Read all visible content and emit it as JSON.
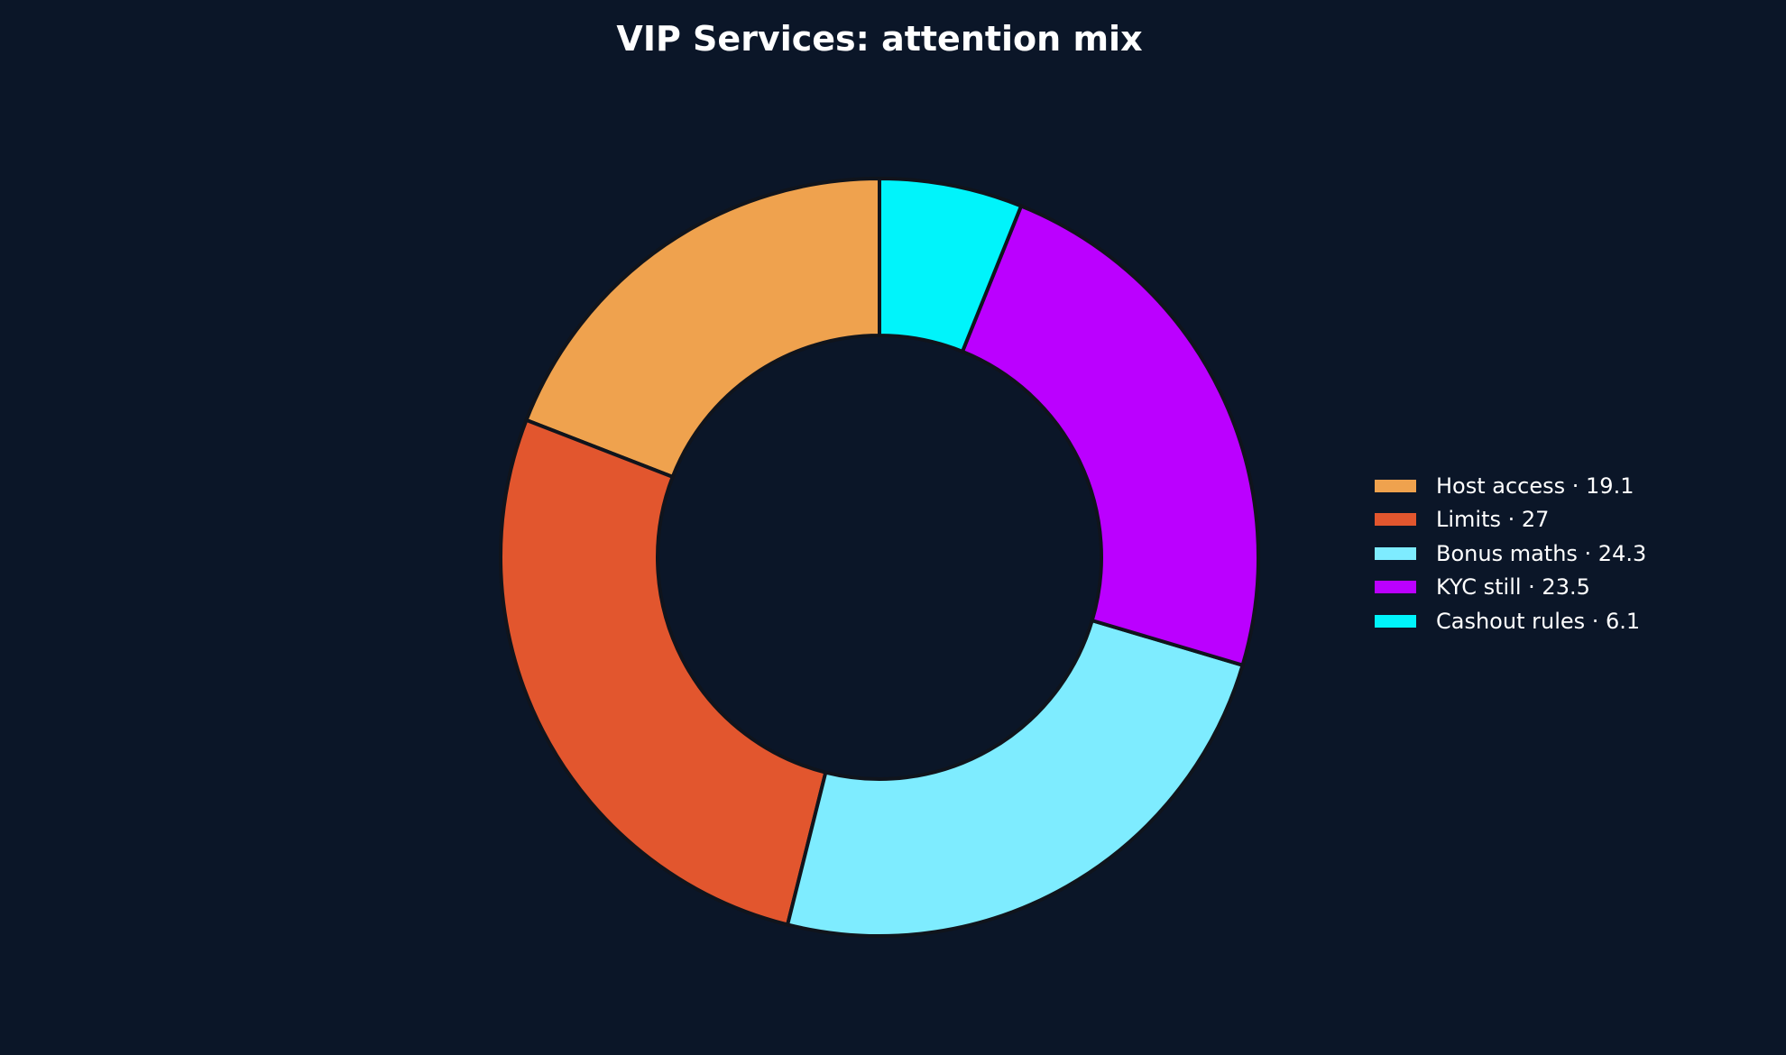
{
  "chart_data": {
    "type": "pie",
    "variant": "donut",
    "title": "VIP Services: attention mix",
    "start": "top, clockwise",
    "legend_position": "right",
    "slices": [
      {
        "label": "Host access",
        "value": 19.1,
        "legend": "Host access · 19.1",
        "color": "#efa24e"
      },
      {
        "label": "Limits",
        "value": 27,
        "legend": "Limits · 27",
        "color": "#e2562e"
      },
      {
        "label": "Bonus maths",
        "value": 24.3,
        "legend": "Bonus maths · 24.3",
        "color": "#7eecff"
      },
      {
        "label": "KYC still",
        "value": 23.5,
        "legend": "KYC still · 23.5",
        "color": "#bb00ff"
      },
      {
        "label": "Cashout rules",
        "value": 6.1,
        "legend": "Cashout rules · 6.1",
        "color": "#00f4fb"
      }
    ]
  },
  "colors": {
    "background": "#0b1628",
    "text": "#ffffff",
    "slice_edge": "#10141c"
  }
}
